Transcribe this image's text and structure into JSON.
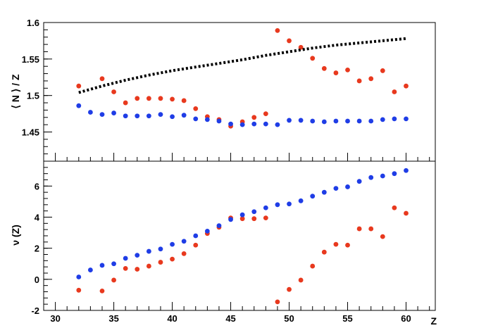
{
  "chart_data": [
    {
      "type": "scatter",
      "xlabel": "",
      "ylabel": "⟨ N ⟩ / Z",
      "xlim": [
        29,
        62.5
      ],
      "ylim": [
        1.41,
        1.6
      ],
      "yticks": [
        1.45,
        1.5,
        1.55,
        1.6
      ],
      "ytick_labels": [
        "1.45",
        "1.5",
        "1.55",
        "1.6"
      ],
      "series": [
        {
          "color": "#e8391e",
          "marker": "circle",
          "points": [
            [
              32,
              1.513
            ],
            [
              34,
              1.523
            ],
            [
              35,
              1.505
            ],
            [
              36,
              1.49
            ],
            [
              37,
              1.496
            ],
            [
              38,
              1.496
            ],
            [
              39,
              1.496
            ],
            [
              40,
              1.495
            ],
            [
              41,
              1.493
            ],
            [
              42,
              1.482
            ],
            [
              43,
              1.471
            ],
            [
              44,
              1.467
            ],
            [
              45,
              1.458
            ],
            [
              46,
              1.464
            ],
            [
              47,
              1.47
            ],
            [
              48,
              1.475
            ],
            [
              49,
              1.589
            ],
            [
              50,
              1.575
            ],
            [
              51,
              1.566
            ],
            [
              52,
              1.551
            ],
            [
              53,
              1.537
            ],
            [
              54,
              1.531
            ],
            [
              55,
              1.535
            ],
            [
              56,
              1.52
            ],
            [
              57,
              1.523
            ],
            [
              58,
              1.534
            ],
            [
              59,
              1.505
            ],
            [
              60,
              1.513
            ]
          ]
        },
        {
          "color": "#1f3de6",
          "marker": "circle",
          "points": [
            [
              32,
              1.486
            ],
            [
              33,
              1.477
            ],
            [
              34,
              1.474
            ],
            [
              35,
              1.476
            ],
            [
              36,
              1.472
            ],
            [
              37,
              1.472
            ],
            [
              38,
              1.472
            ],
            [
              39,
              1.474
            ],
            [
              40,
              1.471
            ],
            [
              41,
              1.473
            ],
            [
              42,
              1.468
            ],
            [
              43,
              1.467
            ],
            [
              44,
              1.465
            ],
            [
              45,
              1.461
            ],
            [
              46,
              1.46
            ],
            [
              47,
              1.461
            ],
            [
              48,
              1.461
            ],
            [
              49,
              1.46
            ],
            [
              50,
              1.466
            ],
            [
              51,
              1.466
            ],
            [
              52,
              1.465
            ],
            [
              53,
              1.464
            ],
            [
              54,
              1.465
            ],
            [
              55,
              1.465
            ],
            [
              56,
              1.465
            ],
            [
              57,
              1.465
            ],
            [
              58,
              1.467
            ],
            [
              59,
              1.468
            ],
            [
              60,
              1.468
            ]
          ]
        },
        {
          "color": "#000000",
          "marker": "dotted-line",
          "points": [
            [
              32,
              1.504
            ],
            [
              34,
              1.513
            ],
            [
              36,
              1.521
            ],
            [
              38,
              1.528
            ],
            [
              40,
              1.534
            ],
            [
              42,
              1.539
            ],
            [
              44,
              1.544
            ],
            [
              46,
              1.549
            ],
            [
              48,
              1.555
            ],
            [
              50,
              1.56
            ],
            [
              52,
              1.565
            ],
            [
              54,
              1.569
            ],
            [
              56,
              1.572
            ],
            [
              58,
              1.575
            ],
            [
              60,
              1.578
            ]
          ]
        }
      ]
    },
    {
      "type": "scatter",
      "xlabel": "Z",
      "ylabel": "ν (Z)",
      "xlim": [
        29,
        62.5
      ],
      "ylim": [
        -2,
        7.6
      ],
      "xticks": [
        30,
        35,
        40,
        45,
        50,
        55,
        60
      ],
      "xtick_labels": [
        "30",
        "35",
        "40",
        "45",
        "50",
        "55",
        "60"
      ],
      "yticks": [
        -2,
        0,
        2,
        4,
        6
      ],
      "ytick_labels": [
        "-2",
        "0",
        "2",
        "4",
        "6"
      ],
      "series": [
        {
          "color": "#e8391e",
          "marker": "circle",
          "points": [
            [
              32,
              -0.7
            ],
            [
              34,
              -0.75
            ],
            [
              35,
              -0.05
            ],
            [
              36,
              0.7
            ],
            [
              37,
              0.65
            ],
            [
              38,
              0.85
            ],
            [
              39,
              1.1
            ],
            [
              40,
              1.3
            ],
            [
              41,
              1.65
            ],
            [
              42,
              2.2
            ],
            [
              43,
              2.95
            ],
            [
              44,
              3.35
            ],
            [
              45,
              3.95
            ],
            [
              46,
              3.9
            ],
            [
              47,
              3.9
            ],
            [
              48,
              3.95
            ],
            [
              49,
              -1.45
            ],
            [
              50,
              -0.65
            ],
            [
              51,
              -0.05
            ],
            [
              52,
              0.85
            ],
            [
              53,
              1.75
            ],
            [
              54,
              2.25
            ],
            [
              55,
              2.2
            ],
            [
              56,
              3.25
            ],
            [
              57,
              3.25
            ],
            [
              58,
              2.75
            ],
            [
              59,
              4.6
            ],
            [
              60,
              4.25
            ]
          ]
        },
        {
          "color": "#1f3de6",
          "marker": "circle",
          "points": [
            [
              32,
              0.15
            ],
            [
              33,
              0.6
            ],
            [
              34,
              0.9
            ],
            [
              35,
              1.0
            ],
            [
              36,
              1.35
            ],
            [
              37,
              1.55
            ],
            [
              38,
              1.8
            ],
            [
              39,
              1.95
            ],
            [
              40,
              2.25
            ],
            [
              41,
              2.45
            ],
            [
              42,
              2.8
            ],
            [
              43,
              3.1
            ],
            [
              44,
              3.45
            ],
            [
              45,
              3.85
            ],
            [
              46,
              4.15
            ],
            [
              47,
              4.35
            ],
            [
              48,
              4.6
            ],
            [
              49,
              4.8
            ],
            [
              50,
              4.85
            ],
            [
              51,
              5.05
            ],
            [
              52,
              5.35
            ],
            [
              53,
              5.6
            ],
            [
              54,
              5.85
            ],
            [
              55,
              5.95
            ],
            [
              56,
              6.3
            ],
            [
              57,
              6.55
            ],
            [
              58,
              6.65
            ],
            [
              59,
              6.8
            ],
            [
              60,
              7.0
            ]
          ]
        }
      ]
    }
  ]
}
